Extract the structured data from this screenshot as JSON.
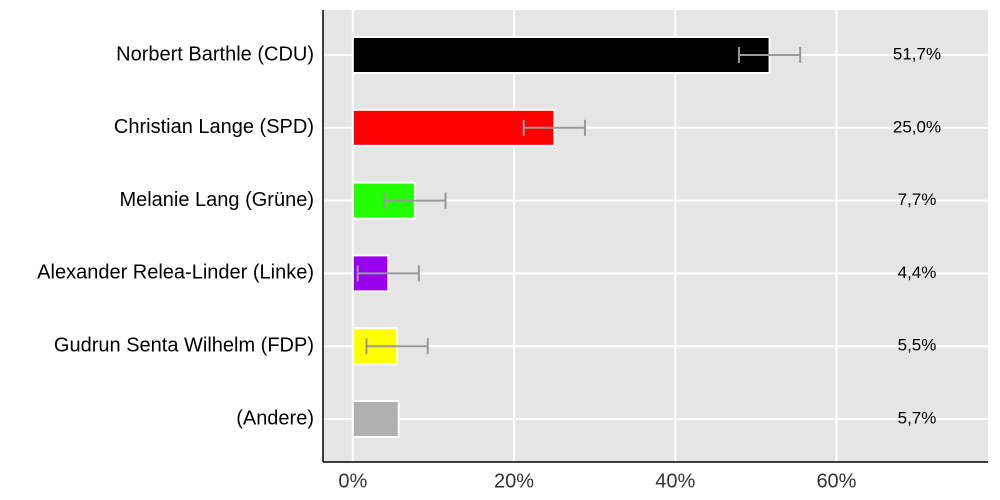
{
  "chart_data": {
    "type": "bar",
    "orientation": "horizontal",
    "categories": [
      "Norbert Barthle (CDU)",
      "Christian Lange (SPD)",
      "Melanie Lang (Grüne)",
      "Alexander Relea-Linder (Linke)",
      "Gudrun Senta Wilhelm (FDP)",
      "(Andere)"
    ],
    "values": [
      51.7,
      25.0,
      7.7,
      4.4,
      5.5,
      5.7
    ],
    "value_labels": [
      "51,7%",
      "25,0%",
      "7,7%",
      "4,4%",
      "5,5%",
      "5,7%"
    ],
    "errors": [
      3.8,
      3.8,
      3.8,
      3.8,
      3.8,
      null
    ],
    "colors": [
      "#000000",
      "#ff0000",
      "#22ff00",
      "#9900ee",
      "#ffff00",
      "#b0b0b0"
    ],
    "xlim": [
      -3.7,
      78.8
    ],
    "xticks": [
      {
        "value": 0,
        "label": "0%"
      },
      {
        "value": 20,
        "label": "20%"
      },
      {
        "value": 40,
        "label": "40%"
      },
      {
        "value": 60,
        "label": "60%"
      }
    ],
    "grid": true
  }
}
